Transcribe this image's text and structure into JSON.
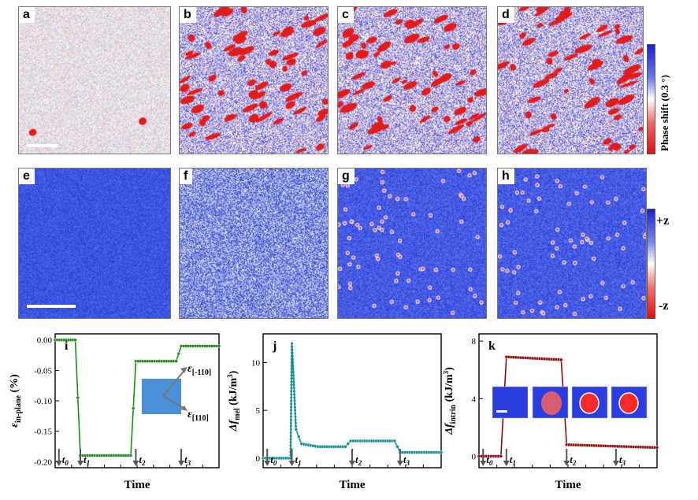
{
  "panels": {
    "a": "a",
    "b": "b",
    "c": "c",
    "d": "d",
    "e": "e",
    "f": "f",
    "g": "g",
    "h": "h",
    "i": "i",
    "j": "j",
    "k": "k"
  },
  "colorbar_top": {
    "label": "Phase shift (0.3 °)"
  },
  "colorbar_bottom": {
    "top": "+z",
    "bottom": "-z"
  },
  "colors": {
    "blue": "#2333d8",
    "red": "#e41b1b",
    "white": "#ffffff",
    "green": "#1f8a1f",
    "teal": "#1a8f8f",
    "darkred": "#8b1010",
    "inset_blue": "#4a90d9"
  },
  "inset_i": {
    "top_label": "ε",
    "top_sub": "[-110]",
    "bottom_label": "ε",
    "bottom_sub": "[110]"
  },
  "chart_data": [
    {
      "type": "line",
      "panel": "i",
      "xlabel": "Time",
      "ylabel": "ε in-plane (%)",
      "ylabel_main": "ε",
      "ylabel_sub": "in-plane",
      "ylabel_unit": "(%)",
      "yticks": [
        "0.00",
        "-0.05",
        "-0.10",
        "-0.15",
        "-0.20"
      ],
      "ylim": [
        -0.21,
        0.01
      ],
      "time_markers": [
        "t0",
        "t1",
        "t2",
        "t3"
      ],
      "series": [
        {
          "values": [
            [
              0.0,
              0.0
            ],
            [
              0.08,
              0.0
            ],
            [
              0.1,
              -0.19
            ],
            [
              0.3,
              -0.19
            ],
            [
              0.32,
              -0.035
            ],
            [
              0.48,
              -0.035
            ],
            [
              0.5,
              -0.01
            ],
            [
              0.65,
              -0.01
            ]
          ]
        }
      ]
    },
    {
      "type": "line",
      "panel": "j",
      "xlabel": "Time",
      "ylabel": "Δf mel (kJ/m³)",
      "ylabel_main": "Δf",
      "ylabel_sub": "mel",
      "ylabel_unit": "(kJ/m",
      "ylabel_sup": "3",
      "yticks": [
        "0",
        "5",
        "10"
      ],
      "ylim": [
        -1,
        13
      ],
      "time_markers": [
        "t0",
        "t1",
        "t2",
        "t3"
      ],
      "series": [
        {
          "values": [
            [
              0.0,
              0.0
            ],
            [
              0.1,
              0.0
            ],
            [
              0.105,
              12.0
            ],
            [
              0.12,
              3.0
            ],
            [
              0.14,
              1.5
            ],
            [
              0.2,
              1.2
            ],
            [
              0.3,
              1.2
            ],
            [
              0.32,
              1.8
            ],
            [
              0.48,
              1.8
            ],
            [
              0.5,
              0.6
            ],
            [
              0.65,
              0.6
            ]
          ]
        }
      ]
    },
    {
      "type": "line",
      "panel": "k",
      "xlabel": "Time",
      "ylabel": "Δf intrin (kJ/m³)",
      "ylabel_main": "Δf",
      "ylabel_sub": "intrin",
      "ylabel_unit": "(kJ/m",
      "ylabel_sup": "3",
      "yticks": [
        "0",
        "4",
        "8"
      ],
      "ylim": [
        -0.8,
        8.5
      ],
      "time_markers": [
        "t0",
        "t1",
        "t2",
        "t3"
      ],
      "series": [
        {
          "values": [
            [
              0.0,
              0.0
            ],
            [
              0.08,
              0.0
            ],
            [
              0.1,
              6.9
            ],
            [
              0.3,
              6.7
            ],
            [
              0.32,
              0.8
            ],
            [
              0.48,
              0.7
            ],
            [
              0.65,
              0.6
            ]
          ]
        }
      ]
    }
  ]
}
